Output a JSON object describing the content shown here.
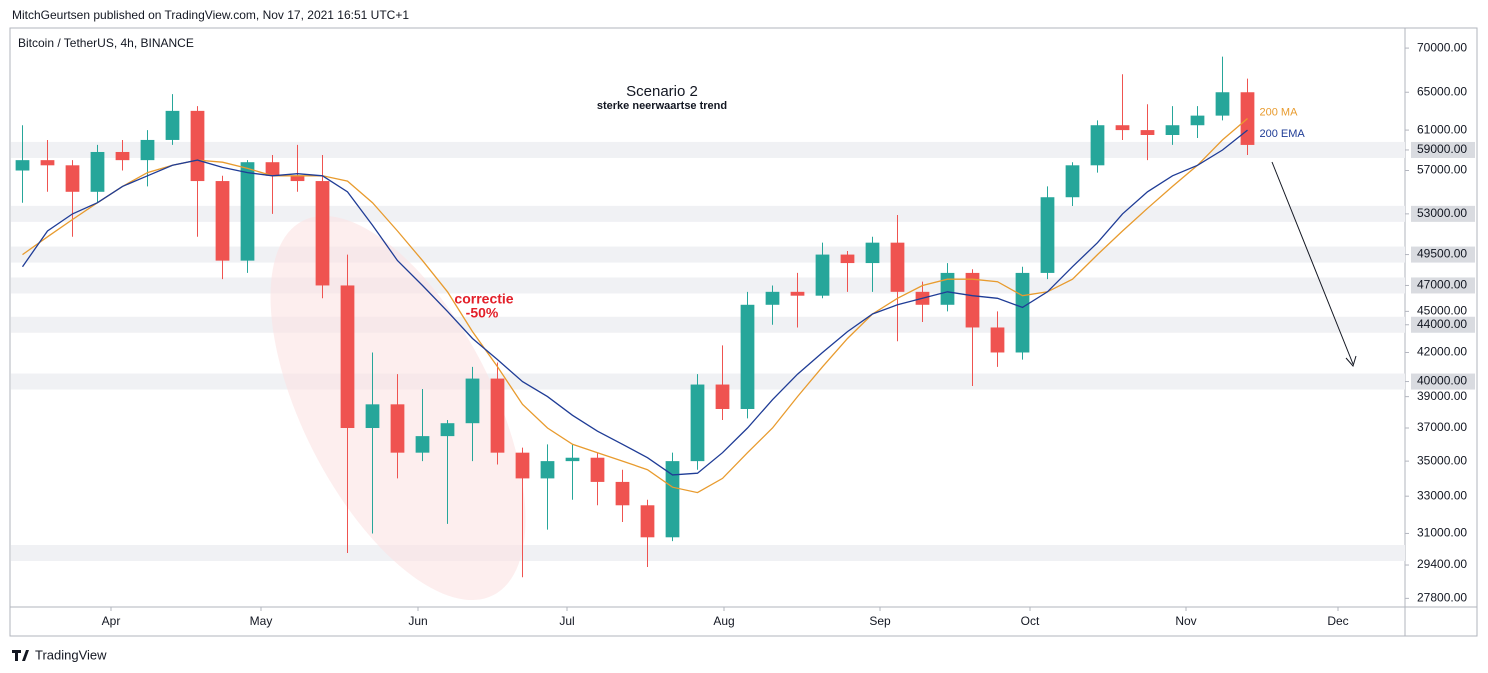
{
  "header": "MitchGeurtsen published on TradingView.com, Nov 17, 2021 16:51 UTC+1",
  "footer": "TradingView",
  "chart_data": {
    "type": "candlestick",
    "title": "Bitcoin / TetherUS, 4h, BINANCE",
    "annotations": {
      "scenario": "Scenario 2",
      "subtitle": "sterke neerwaartse trend",
      "correction": "correctie",
      "correction_pct": "-50%"
    },
    "log_scale": true,
    "ylim": [
      27400,
      72400
    ],
    "yticks": [
      {
        "value": 70000,
        "label": "70000.00"
      },
      {
        "value": 65000,
        "label": "65000.00"
      },
      {
        "value": 61000,
        "label": "61000.00"
      },
      {
        "value": 59000,
        "label": "59000.00"
      },
      {
        "value": 57000,
        "label": "57000.00"
      },
      {
        "value": 53000,
        "label": "53000.00"
      },
      {
        "value": 49500,
        "label": "49500.00"
      },
      {
        "value": 47000,
        "label": "47000.00"
      },
      {
        "value": 45000,
        "label": "45000.00"
      },
      {
        "value": 44000,
        "label": "44000.00"
      },
      {
        "value": 42000,
        "label": "42000.00"
      },
      {
        "value": 40000,
        "label": "40000.00"
      },
      {
        "value": 39000,
        "label": "39000.00"
      },
      {
        "value": 37000,
        "label": "37000.00"
      },
      {
        "value": 35000,
        "label": "35000.00"
      },
      {
        "value": 33000,
        "label": "33000.00"
      },
      {
        "value": 31000,
        "label": "31000.00"
      },
      {
        "value": 29400,
        "label": "29400.00"
      },
      {
        "value": 27800,
        "label": "27800.00"
      }
    ],
    "levels": [
      59000,
      53000,
      49500,
      47000,
      44000,
      40000,
      30000
    ],
    "xlim": [
      0,
      55.8
    ],
    "xticks": [
      {
        "value": 4.04,
        "label": "Apr"
      },
      {
        "value": 10.04,
        "label": "May"
      },
      {
        "value": 16.32,
        "label": "Jun"
      },
      {
        "value": 22.28,
        "label": "Jul"
      },
      {
        "value": 28.56,
        "label": "Aug"
      },
      {
        "value": 34.8,
        "label": "Sep"
      },
      {
        "value": 40.8,
        "label": "Oct"
      },
      {
        "value": 47.04,
        "label": "Nov"
      },
      {
        "value": 53.12,
        "label": "Dec"
      }
    ],
    "up_color": "#26a69a",
    "down_color": "#ef5350",
    "open": [
      57000,
      58000,
      57500,
      55000,
      58800,
      58000,
      60000,
      63000,
      56000,
      49000,
      57800,
      56500,
      56000,
      47000,
      37000,
      38500,
      35500,
      36500,
      37300,
      40200,
      35500,
      34000,
      35000,
      35200,
      33800,
      32500,
      30800,
      35000,
      39800,
      38200,
      45500,
      46500,
      46200,
      49500,
      48800,
      50500,
      46500,
      45500,
      48000,
      43800,
      42000,
      48000,
      54500,
      57500,
      61500,
      61000,
      60500,
      61500,
      62500,
      65000
    ],
    "high": [
      61500,
      60000,
      58000,
      59500,
      60000,
      61000,
      64800,
      63500,
      56500,
      58000,
      58500,
      59500,
      58500,
      49500,
      42000,
      40500,
      39500,
      37500,
      41000,
      41300,
      35800,
      36000,
      36000,
      35500,
      34500,
      32800,
      35500,
      40500,
      42500,
      46500,
      47000,
      48000,
      50500,
      49800,
      51000,
      52900,
      47300,
      48800,
      48300,
      45000,
      48500,
      55500,
      57800,
      62000,
      67000,
      63700,
      63500,
      63500,
      69000,
      66500
    ],
    "low": [
      54000,
      55000,
      51000,
      54000,
      57000,
      55500,
      59500,
      51000,
      47500,
      48000,
      53000,
      55000,
      46000,
      30000,
      31000,
      34000,
      35000,
      31500,
      35000,
      34800,
      28800,
      31200,
      32800,
      32500,
      31600,
      29300,
      30600,
      34500,
      37500,
      37600,
      44000,
      43800,
      46000,
      46500,
      46500,
      42800,
      44200,
      45000,
      39700,
      41000,
      41500,
      47500,
      53700,
      56800,
      60000,
      58000,
      59500,
      60200,
      62000,
      58500
    ],
    "close": [
      58000,
      57500,
      55000,
      58800,
      58000,
      60000,
      63000,
      56000,
      49000,
      57800,
      56500,
      56000,
      47000,
      37000,
      38500,
      35500,
      36500,
      37300,
      40200,
      35500,
      34000,
      35000,
      35200,
      33800,
      32500,
      30800,
      35000,
      39800,
      38200,
      45500,
      46500,
      46200,
      49500,
      48800,
      50500,
      46500,
      45500,
      48000,
      43800,
      42000,
      48000,
      54500,
      57500,
      61500,
      61000,
      60500,
      61500,
      62500,
      65000,
      59500
    ],
    "series": [
      {
        "name": "200 MA",
        "color": "#e89b2e",
        "values": [
          49500,
          51000,
          52500,
          54000,
          55500,
          56800,
          57500,
          58000,
          57800,
          57200,
          56500,
          56500,
          56500,
          56000,
          54000,
          51500,
          49000,
          46500,
          43500,
          41000,
          38500,
          37000,
          36000,
          35500,
          35000,
          34500,
          33500,
          33200,
          34000,
          35500,
          37000,
          39000,
          41000,
          43000,
          44800,
          46000,
          47000,
          47500,
          47500,
          47300,
          46200,
          46500,
          47500,
          49500,
          51500,
          53500,
          55500,
          57500,
          60000,
          62200
        ]
      },
      {
        "name": "200 EMA",
        "color": "#1f3c96",
        "values": [
          48500,
          51500,
          53000,
          54000,
          55500,
          56500,
          57500,
          58000,
          57300,
          56800,
          56500,
          56700,
          56500,
          55000,
          52000,
          49000,
          47000,
          45000,
          43000,
          41500,
          40000,
          39000,
          37800,
          36800,
          36000,
          35200,
          34200,
          34300,
          35500,
          37000,
          38800,
          40500,
          42000,
          43500,
          44800,
          45500,
          46000,
          46500,
          46200,
          46000,
          45300,
          46500,
          48500,
          50500,
          53000,
          55000,
          56500,
          57500,
          59000,
          61000
        ]
      }
    ]
  }
}
